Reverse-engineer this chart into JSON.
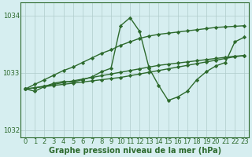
{
  "x": [
    0,
    1,
    2,
    3,
    4,
    5,
    6,
    7,
    8,
    9,
    10,
    11,
    12,
    13,
    14,
    15,
    16,
    17,
    18,
    19,
    20,
    21,
    22,
    23
  ],
  "y_main": [
    1032.72,
    1032.68,
    1032.76,
    1032.82,
    1032.85,
    1032.84,
    1032.88,
    1032.93,
    1033.02,
    1033.08,
    1033.82,
    1033.96,
    1033.72,
    1033.08,
    1032.78,
    1032.52,
    1032.58,
    1032.68,
    1032.88,
    1033.02,
    1033.12,
    1033.18,
    1033.54,
    1033.62
  ],
  "y_upper_trend": [
    1032.72,
    1032.8,
    1032.88,
    1032.96,
    1033.04,
    1033.1,
    1033.18,
    1033.26,
    1033.34,
    1033.4,
    1033.48,
    1033.54,
    1033.6,
    1033.64,
    1033.67,
    1033.69,
    1033.71,
    1033.73,
    1033.75,
    1033.77,
    1033.79,
    1033.8,
    1033.81,
    1033.82
  ],
  "y_lower_trend": [
    1032.72,
    1032.74,
    1032.76,
    1032.78,
    1032.8,
    1032.82,
    1032.84,
    1032.86,
    1032.88,
    1032.9,
    1032.92,
    1032.95,
    1032.98,
    1033.01,
    1033.04,
    1033.07,
    1033.1,
    1033.13,
    1033.16,
    1033.19,
    1033.22,
    1033.25,
    1033.28,
    1033.3
  ],
  "y_mid_trend": [
    1032.72,
    1032.74,
    1032.77,
    1032.8,
    1032.83,
    1032.86,
    1032.89,
    1032.92,
    1032.95,
    1032.98,
    1033.01,
    1033.04,
    1033.07,
    1033.1,
    1033.13,
    1033.15,
    1033.17,
    1033.19,
    1033.21,
    1033.23,
    1033.25,
    1033.27,
    1033.29,
    1033.3
  ],
  "ylim": [
    1031.88,
    1034.22
  ],
  "yticks": [
    1032,
    1033,
    1034
  ],
  "xticks": [
    0,
    1,
    2,
    3,
    4,
    5,
    6,
    7,
    8,
    9,
    10,
    11,
    12,
    13,
    14,
    15,
    16,
    17,
    18,
    19,
    20,
    21,
    22,
    23
  ],
  "xlabel": "Graphe pression niveau de la mer (hPa)",
  "bg_color": "#d6eef0",
  "grid_color": "#b0cccc",
  "line_color": "#2d6a2d",
  "marker": "D",
  "marker_size": 2.2,
  "line_width": 1.0,
  "tick_fontsize": 6.0,
  "xlabel_fontsize": 7.0
}
